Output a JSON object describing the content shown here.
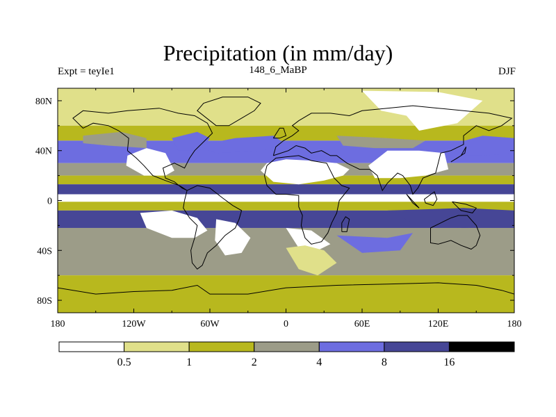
{
  "title": "Precipitation (in mm/day)",
  "left_string": "Expt = teyIe1",
  "center_string": "148_6_MaBP",
  "right_string": "DJF",
  "chart_data": {
    "type": "heatmap",
    "variable": "Precipitation",
    "units": "mm/day",
    "season": "DJF",
    "experiment": "teyIe1",
    "period": "148_6_MaBP",
    "x_ticks": [
      "180",
      "120W",
      "60W",
      "0",
      "60E",
      "120E",
      "180"
    ],
    "y_ticks": [
      "80N",
      "40N",
      "0",
      "40S",
      "80S"
    ],
    "xlim": [
      -180,
      180
    ],
    "ylim": [
      -90,
      90
    ],
    "colorbar": {
      "levels": [
        "0.5",
        "1",
        "2",
        "4",
        "8",
        "16"
      ],
      "colors": [
        "#ffffff",
        "#e0e08a",
        "#b8b81e",
        "#9c9c88",
        "#6d6de0",
        "#464696",
        "#000000"
      ]
    },
    "zonal_bands": [
      {
        "lat": [
          60,
          90
        ],
        "class": 1
      },
      {
        "lat": [
          48,
          60
        ],
        "class": 2
      },
      {
        "lat": [
          30,
          48
        ],
        "class": 4
      },
      {
        "lat": [
          20,
          30
        ],
        "class": 3
      },
      {
        "lat": [
          13,
          20
        ],
        "class": 2
      },
      {
        "lat": [
          5,
          13
        ],
        "class": 5
      },
      {
        "lat": [
          -1,
          5
        ],
        "class": 0
      },
      {
        "lat": [
          -8,
          -1
        ],
        "class": 2
      },
      {
        "lat": [
          -22,
          -8
        ],
        "class": 5
      },
      {
        "lat": [
          -60,
          -22
        ],
        "class": 3
      },
      {
        "lat": [
          -90,
          -60
        ],
        "class": 2
      }
    ],
    "regions": [
      {
        "name": "arctic-dry",
        "class": 0,
        "points": [
          [
            60,
            88
          ],
          [
            120,
            87
          ],
          [
            155,
            80
          ],
          [
            135,
            62
          ],
          [
            105,
            56
          ],
          [
            95,
            68
          ],
          [
            75,
            72
          ]
        ]
      },
      {
        "name": "china-dry",
        "class": 0,
        "points": [
          [
            65,
            28
          ],
          [
            80,
            40
          ],
          [
            105,
            40
          ],
          [
            125,
            38
          ],
          [
            128,
            25
          ],
          [
            110,
            20
          ],
          [
            90,
            18
          ],
          [
            70,
            18
          ]
        ]
      },
      {
        "name": "north-africa-dry",
        "class": 0,
        "points": [
          [
            -20,
            24
          ],
          [
            -15,
            30
          ],
          [
            0,
            33
          ],
          [
            20,
            32
          ],
          [
            40,
            30
          ],
          [
            50,
            25
          ],
          [
            45,
            20
          ],
          [
            30,
            16
          ],
          [
            10,
            13
          ],
          [
            -10,
            15
          ]
        ]
      },
      {
        "name": "na-west-dry",
        "class": 0,
        "points": [
          [
            -125,
            36
          ],
          [
            -110,
            42
          ],
          [
            -95,
            38
          ],
          [
            -88,
            24
          ],
          [
            -95,
            20
          ],
          [
            -112,
            20
          ],
          [
            -126,
            28
          ]
        ]
      },
      {
        "name": "south-pacific-dry",
        "class": 0,
        "points": [
          [
            -115,
            -10
          ],
          [
            -90,
            -8
          ],
          [
            -70,
            -14
          ],
          [
            -62,
            -24
          ],
          [
            -72,
            -30
          ],
          [
            -90,
            -30
          ],
          [
            -110,
            -22
          ]
        ]
      },
      {
        "name": "sa-south-dry",
        "class": 0,
        "points": [
          [
            -55,
            -15
          ],
          [
            -40,
            -18
          ],
          [
            -28,
            -30
          ],
          [
            -35,
            -42
          ],
          [
            -48,
            -44
          ],
          [
            -56,
            -32
          ]
        ]
      },
      {
        "name": "southern-africa-dry",
        "class": 0,
        "points": [
          [
            0,
            -22
          ],
          [
            20,
            -24
          ],
          [
            35,
            -35
          ],
          [
            25,
            -40
          ],
          [
            10,
            -38
          ]
        ]
      },
      {
        "name": "africa-south-mix",
        "class": 1,
        "points": [
          [
            0,
            -38
          ],
          [
            10,
            -55
          ],
          [
            25,
            -60
          ],
          [
            40,
            -50
          ],
          [
            30,
            -40
          ],
          [
            15,
            -36
          ]
        ]
      },
      {
        "name": "pacific-nw-band",
        "class": 3,
        "points": [
          [
            -160,
            52
          ],
          [
            -130,
            55
          ],
          [
            -110,
            50
          ],
          [
            -110,
            42
          ],
          [
            -140,
            44
          ],
          [
            -160,
            46
          ]
        ]
      },
      {
        "name": "atlantic-storm",
        "class": 4,
        "points": [
          [
            -70,
            44
          ],
          [
            -40,
            50
          ],
          [
            -10,
            52
          ],
          [
            0,
            45
          ],
          [
            -20,
            40
          ],
          [
            -55,
            38
          ]
        ]
      },
      {
        "name": "na-east-wet",
        "class": 4,
        "points": [
          [
            -90,
            50
          ],
          [
            -70,
            55
          ],
          [
            -60,
            50
          ],
          [
            -68,
            40
          ],
          [
            -85,
            40
          ]
        ]
      },
      {
        "name": "east-asia-wet",
        "class": 4,
        "points": [
          [
            130,
            45
          ],
          [
            155,
            52
          ],
          [
            180,
            50
          ],
          [
            180,
            38
          ],
          [
            155,
            36
          ],
          [
            135,
            36
          ]
        ]
      },
      {
        "name": "asia-band",
        "class": 3,
        "points": [
          [
            40,
            52
          ],
          [
            80,
            50
          ],
          [
            110,
            48
          ],
          [
            100,
            42
          ],
          [
            70,
            42
          ],
          [
            45,
            44
          ]
        ]
      },
      {
        "name": "maritime-wet",
        "class": 5,
        "points": [
          [
            80,
            -8
          ],
          [
            140,
            -6
          ],
          [
            180,
            -8
          ],
          [
            180,
            -20
          ],
          [
            140,
            -22
          ],
          [
            100,
            -18
          ]
        ]
      },
      {
        "name": "south-indian-mix",
        "class": 4,
        "points": [
          [
            40,
            -28
          ],
          [
            80,
            -30
          ],
          [
            100,
            -26
          ],
          [
            90,
            -40
          ],
          [
            60,
            -42
          ]
        ]
      }
    ],
    "coast": [
      [
        [
          -125,
          40
        ],
        [
          -124,
          50
        ],
        [
          -132,
          56
        ],
        [
          -140,
          60
        ],
        [
          -152,
          62
        ],
        [
          -160,
          58
        ],
        [
          -168,
          66
        ],
        [
          -160,
          72
        ],
        [
          -140,
          70
        ],
        [
          -125,
          72
        ],
        [
          -100,
          74
        ],
        [
          -85,
          70
        ],
        [
          -72,
          68
        ],
        [
          -62,
          62
        ],
        [
          -58,
          54
        ],
        [
          -66,
          46
        ],
        [
          -72,
          40
        ],
        [
          -76,
          34
        ],
        [
          -80,
          26
        ],
        [
          -88,
          30
        ],
        [
          -97,
          26
        ],
        [
          -95,
          18
        ],
        [
          -88,
          15
        ],
        [
          -82,
          10
        ],
        [
          -78,
          8
        ],
        [
          -84,
          12
        ],
        [
          -95,
          16
        ],
        [
          -105,
          20
        ],
        [
          -112,
          28
        ],
        [
          -118,
          34
        ],
        [
          -125,
          40
        ]
      ],
      [
        [
          -78,
          8
        ],
        [
          -70,
          12
        ],
        [
          -60,
          10
        ],
        [
          -50,
          2
        ],
        [
          -42,
          -4
        ],
        [
          -35,
          -8
        ],
        [
          -37,
          -15
        ],
        [
          -40,
          -22
        ],
        [
          -48,
          -28
        ],
        [
          -55,
          -36
        ],
        [
          -62,
          -42
        ],
        [
          -66,
          -52
        ],
        [
          -70,
          -55
        ],
        [
          -74,
          -50
        ],
        [
          -75,
          -40
        ],
        [
          -72,
          -30
        ],
        [
          -70,
          -20
        ],
        [
          -76,
          -14
        ],
        [
          -81,
          -6
        ],
        [
          -80,
          0
        ],
        [
          -78,
          8
        ]
      ],
      [
        [
          -15,
          28
        ],
        [
          -17,
          20
        ],
        [
          -15,
          12
        ],
        [
          -8,
          5
        ],
        [
          0,
          5
        ],
        [
          10,
          4
        ],
        [
          10,
          -5
        ],
        [
          13,
          -12
        ],
        [
          12,
          -20
        ],
        [
          15,
          -30
        ],
        [
          20,
          -35
        ],
        [
          28,
          -33
        ],
        [
          33,
          -26
        ],
        [
          36,
          -18
        ],
        [
          40,
          -10
        ],
        [
          42,
          0
        ],
        [
          50,
          10
        ],
        [
          44,
          12
        ],
        [
          38,
          18
        ],
        [
          32,
          30
        ],
        [
          20,
          32
        ],
        [
          10,
          36
        ],
        [
          0,
          35
        ],
        [
          -8,
          34
        ],
        [
          -15,
          28
        ]
      ],
      [
        [
          -10,
          36
        ],
        [
          -8,
          43
        ],
        [
          -2,
          48
        ],
        [
          5,
          52
        ],
        [
          10,
          56
        ],
        [
          5,
          60
        ],
        [
          10,
          64
        ],
        [
          20,
          70
        ],
        [
          35,
          70
        ],
        [
          50,
          68
        ],
        [
          60,
          72
        ],
        [
          80,
          74
        ],
        [
          100,
          76
        ],
        [
          120,
          74
        ],
        [
          140,
          72
        ],
        [
          160,
          70
        ],
        [
          178,
          66
        ],
        [
          170,
          60
        ],
        [
          160,
          56
        ],
        [
          150,
          60
        ],
        [
          140,
          52
        ],
        [
          140,
          45
        ],
        [
          130,
          40
        ],
        [
          122,
          38
        ],
        [
          120,
          30
        ],
        [
          118,
          22
        ],
        [
          108,
          18
        ],
        [
          104,
          10
        ],
        [
          100,
          5
        ],
        [
          98,
          12
        ],
        [
          92,
          20
        ],
        [
          88,
          22
        ],
        [
          80,
          14
        ],
        [
          76,
          8
        ],
        [
          72,
          20
        ],
        [
          66,
          25
        ],
        [
          58,
          25
        ],
        [
          52,
          28
        ],
        [
          48,
          30
        ],
        [
          40,
          36
        ],
        [
          35,
          36
        ],
        [
          28,
          40
        ],
        [
          20,
          38
        ],
        [
          15,
          42
        ],
        [
          8,
          44
        ],
        [
          2,
          40
        ],
        [
          -10,
          36
        ]
      ],
      [
        [
          114,
          -22
        ],
        [
          114,
          -34
        ],
        [
          120,
          -35
        ],
        [
          130,
          -32
        ],
        [
          138,
          -36
        ],
        [
          146,
          -39
        ],
        [
          150,
          -36
        ],
        [
          153,
          -28
        ],
        [
          150,
          -20
        ],
        [
          143,
          -12
        ],
        [
          136,
          -12
        ],
        [
          130,
          -14
        ],
        [
          122,
          -18
        ],
        [
          114,
          -22
        ]
      ],
      [
        [
          -55,
          60
        ],
        [
          -45,
          60
        ],
        [
          -35,
          66
        ],
        [
          -25,
          72
        ],
        [
          -20,
          78
        ],
        [
          -30,
          83
        ],
        [
          -50,
          83
        ],
        [
          -65,
          78
        ],
        [
          -70,
          72
        ],
        [
          -55,
          60
        ]
      ],
      [
        [
          -180,
          -70
        ],
        [
          -150,
          -75
        ],
        [
          -120,
          -73
        ],
        [
          -90,
          -72
        ],
        [
          -70,
          -68
        ],
        [
          -60,
          -75
        ],
        [
          -30,
          -75
        ],
        [
          0,
          -70
        ],
        [
          40,
          -68
        ],
        [
          80,
          -67
        ],
        [
          120,
          -66
        ],
        [
          150,
          -68
        ],
        [
          170,
          -72
        ],
        [
          180,
          -75
        ]
      ],
      [
        [
          -10,
          50
        ],
        [
          -5,
          58
        ],
        [
          -2,
          58
        ],
        [
          0,
          52
        ],
        [
          -5,
          50
        ],
        [
          -10,
          50
        ]
      ],
      [
        [
          44,
          -25
        ],
        [
          48,
          -25
        ],
        [
          50,
          -15
        ],
        [
          47,
          -13
        ],
        [
          44,
          -18
        ],
        [
          44,
          -25
        ]
      ],
      [
        [
          130,
          31
        ],
        [
          135,
          34
        ],
        [
          141,
          38
        ],
        [
          142,
          43
        ],
        [
          138,
          36
        ],
        [
          130,
          31
        ]
      ],
      [
        [
          95,
          5
        ],
        [
          105,
          -6
        ],
        [
          100,
          -2
        ],
        [
          95,
          5
        ]
      ],
      [
        [
          109,
          1
        ],
        [
          117,
          7
        ],
        [
          119,
          1
        ],
        [
          116,
          -4
        ],
        [
          110,
          -2
        ],
        [
          109,
          1
        ]
      ],
      [
        [
          131,
          -1
        ],
        [
          142,
          -3
        ],
        [
          150,
          -6
        ],
        [
          147,
          -10
        ],
        [
          138,
          -8
        ],
        [
          131,
          -1
        ]
      ]
    ]
  }
}
